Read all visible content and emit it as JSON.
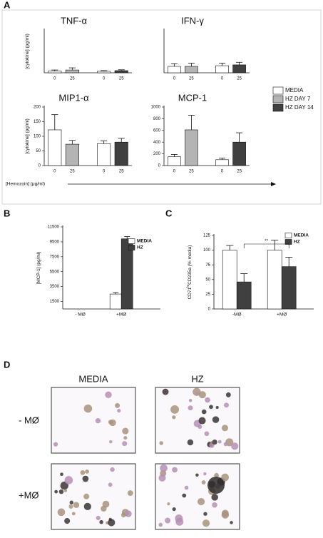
{
  "panel_labels": [
    "A",
    "B",
    "C",
    "D"
  ],
  "panel_a": {
    "x_label": "[Hemozoin] (μg/ml)",
    "legend": [
      {
        "name": "MEDIA",
        "color": "#ffffff"
      },
      {
        "name": "HZ DAY 7",
        "color": "#b4b4b4"
      },
      {
        "name": "HZ DAY 14",
        "color": "#404040"
      }
    ]
  },
  "chart_data": [
    {
      "type": "bar",
      "title": "TNF-α",
      "y_label": "[cytokine] (pg/ml)",
      "categories": [
        "0",
        "25",
        "0",
        "25"
      ],
      "values": [
        8,
        13,
        7,
        10
      ],
      "errors": [
        5,
        10,
        3,
        4
      ],
      "colors": [
        "#ffffff",
        "#b4b4b4",
        "#ffffff",
        "#404040"
      ],
      "ylim": [
        0,
        200
      ]
    },
    {
      "type": "bar",
      "title": "IFN-γ",
      "categories": [
        "0",
        "25",
        "0",
        "25"
      ],
      "values": [
        30,
        30,
        33,
        37
      ],
      "errors": [
        12,
        15,
        12,
        12
      ],
      "colors": [
        "#ffffff",
        "#b4b4b4",
        "#ffffff",
        "#404040"
      ],
      "ylim": [
        0,
        200
      ]
    },
    {
      "type": "bar",
      "title": "MIP1-α",
      "y_label": "[cytokine] (pg/ml)",
      "categories": [
        "0",
        "25",
        "0",
        "25"
      ],
      "values": [
        122,
        73,
        75,
        80
      ],
      "errors": [
        52,
        13,
        9,
        13
      ],
      "colors": [
        "#ffffff",
        "#b4b4b4",
        "#ffffff",
        "#404040"
      ],
      "ylim": [
        0,
        200
      ],
      "yticks": [
        0,
        50,
        100,
        150,
        200
      ]
    },
    {
      "type": "bar",
      "title": "MCP-1",
      "categories": [
        "0",
        "25",
        "0",
        "25"
      ],
      "values": [
        150,
        610,
        100,
        400
      ],
      "errors": [
        40,
        250,
        25,
        160
      ],
      "colors": [
        "#ffffff",
        "#b4b4b4",
        "#ffffff",
        "#404040"
      ],
      "ylim": [
        0,
        1000
      ],
      "yticks": [
        0,
        200,
        400,
        600,
        800,
        1000
      ]
    },
    {
      "type": "grouped_bar",
      "y_label": "[MCP-1] (pg/ml)",
      "categories": [
        "- MØ",
        "+MØ"
      ],
      "series": [
        {
          "name": "MEDIA",
          "color": "#ffffff",
          "values": [
            null,
            2500
          ],
          "errors": [
            null,
            200
          ]
        },
        {
          "name": "HZ",
          "color": "#404040",
          "values": [
            null,
            9900
          ],
          "errors": [
            null,
            300
          ]
        }
      ],
      "ylim": [
        500,
        11500
      ],
      "yticks": [
        1500,
        3500,
        5500,
        7500,
        9500,
        11500
      ]
    },
    {
      "type": "grouped_bar",
      "y_label": "CD71",
      "y_label_sup": "lo",
      "y_label_rest": "CD235a (% media)",
      "categories": [
        "-MØ",
        "+MØ"
      ],
      "series": [
        {
          "name": "MEDIA",
          "color": "#ffffff",
          "values": [
            100,
            100
          ],
          "errors": [
            8,
            17
          ]
        },
        {
          "name": "HZ",
          "color": "#404040",
          "values": [
            46,
            72
          ],
          "errors": [
            14,
            16
          ]
        }
      ],
      "ylim": [
        0,
        125
      ],
      "yticks": [
        0,
        25,
        50,
        75,
        100,
        125
      ],
      "significance": "**"
    }
  ],
  "panel_d": {
    "columns": [
      "MEDIA",
      "HZ"
    ],
    "rows": [
      "- MØ",
      "+MØ"
    ]
  }
}
